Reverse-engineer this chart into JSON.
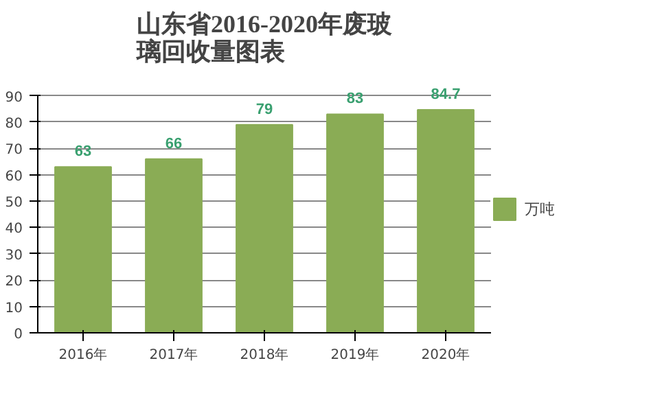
{
  "chart_data": {
    "type": "bar",
    "title": "山东省2016-2020年废玻璃回收量图表",
    "categories": [
      "2016年",
      "2017年",
      "2018年",
      "2019年",
      "2020年"
    ],
    "series": [
      {
        "name": "万吨",
        "color": "#8aac55",
        "values": [
          63,
          66,
          79,
          83,
          84.7
        ]
      }
    ],
    "ylim": [
      0,
      90
    ],
    "yticks": [
      0,
      10,
      20,
      30,
      40,
      50,
      60,
      70,
      80,
      90
    ],
    "grid": "y",
    "legend": "right",
    "data_labels": true
  }
}
